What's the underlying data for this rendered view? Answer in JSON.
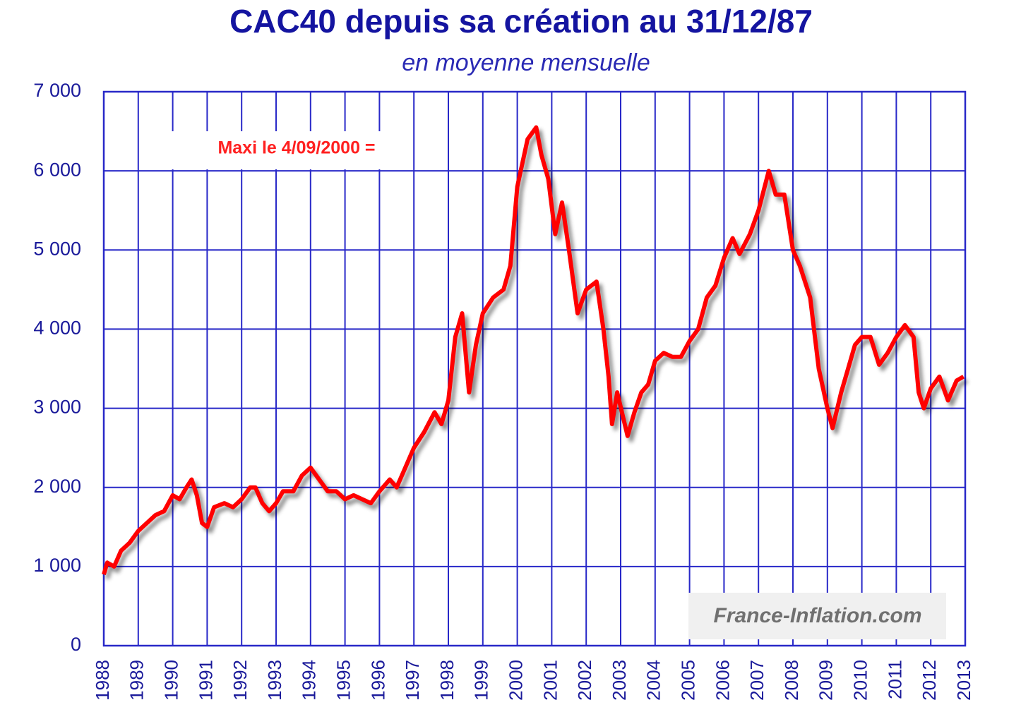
{
  "chart_data": {
    "type": "line",
    "title": "CAC40 depuis sa création au 31/12/87",
    "subtitle": "en moyenne mensuelle",
    "annotations": [
      "Maxi le 4/09/2000 =",
      "France-Inflation.com"
    ],
    "x": [
      1988.0,
      1988.1,
      1988.3,
      1988.5,
      1988.75,
      1989.0,
      1989.25,
      1989.5,
      1989.75,
      1990.0,
      1990.2,
      1990.4,
      1990.55,
      1990.7,
      1990.85,
      1991.0,
      1991.2,
      1991.5,
      1991.75,
      1992.0,
      1992.25,
      1992.4,
      1992.6,
      1992.8,
      1993.0,
      1993.2,
      1993.5,
      1993.75,
      1994.0,
      1994.25,
      1994.5,
      1994.75,
      1995.0,
      1995.25,
      1995.5,
      1995.75,
      1996.0,
      1996.3,
      1996.5,
      1996.75,
      1997.0,
      1997.3,
      1997.6,
      1997.8,
      1998.0,
      1998.2,
      1998.4,
      1998.6,
      1998.8,
      1999.0,
      1999.3,
      1999.6,
      1999.8,
      2000.0,
      2000.3,
      2000.55,
      2000.7,
      2000.9,
      2001.1,
      2001.3,
      2001.5,
      2001.75,
      2002.0,
      2002.3,
      2002.5,
      2002.65,
      2002.75,
      2002.9,
      2003.2,
      2003.4,
      2003.6,
      2003.8,
      2004.0,
      2004.25,
      2004.5,
      2004.75,
      2005.0,
      2005.25,
      2005.5,
      2005.75,
      2006.0,
      2006.25,
      2006.45,
      2006.75,
      2007.0,
      2007.3,
      2007.5,
      2007.75,
      2008.0,
      2008.2,
      2008.5,
      2008.75,
      2009.0,
      2009.15,
      2009.4,
      2009.6,
      2009.8,
      2010.0,
      2010.25,
      2010.5,
      2010.75,
      2011.0,
      2011.25,
      2011.5,
      2011.65,
      2011.8,
      2012.0,
      2012.25,
      2012.5,
      2012.75,
      2012.95
    ],
    "series": [
      {
        "name": "CAC40",
        "color": "#ff0000",
        "values": [
          900,
          1050,
          1000,
          1200,
          1300,
          1450,
          1550,
          1650,
          1700,
          1900,
          1850,
          2000,
          2100,
          1900,
          1550,
          1500,
          1750,
          1800,
          1750,
          1850,
          2000,
          2000,
          1800,
          1700,
          1800,
          1950,
          1950,
          2150,
          2250,
          2100,
          1950,
          1950,
          1850,
          1900,
          1850,
          1800,
          1950,
          2100,
          2000,
          2250,
          2500,
          2700,
          2950,
          2800,
          3100,
          3900,
          4200,
          3200,
          3800,
          4200,
          4400,
          4500,
          4800,
          5800,
          6400,
          6550,
          6200,
          5900,
          5200,
          5600,
          5000,
          4200,
          4500,
          4600,
          4000,
          3400,
          2800,
          3200,
          2650,
          2950,
          3200,
          3300,
          3600,
          3700,
          3650,
          3650,
          3850,
          4000,
          4400,
          4550,
          4900,
          5150,
          4950,
          5200,
          5500,
          6000,
          5700,
          5700,
          5000,
          4800,
          4400,
          3500,
          3000,
          2750,
          3200,
          3500,
          3800,
          3900,
          3900,
          3550,
          3700,
          3900,
          4050,
          3900,
          3200,
          3000,
          3250,
          3400,
          3100,
          3350,
          3400
        ]
      }
    ],
    "xlim": [
      1988,
      2013
    ],
    "xticks": [
      1988,
      1989,
      1990,
      1991,
      1992,
      1993,
      1994,
      1995,
      1996,
      1997,
      1998,
      1999,
      2000,
      2001,
      2002,
      2003,
      2004,
      2005,
      2006,
      2007,
      2008,
      2009,
      2010,
      2011,
      2012,
      2013
    ],
    "ylim": [
      0,
      7000
    ],
    "yticks": [
      {
        "value": 0,
        "label": "0"
      },
      {
        "value": 1000,
        "label": "1 000"
      },
      {
        "value": 2000,
        "label": "2 000"
      },
      {
        "value": 3000,
        "label": "3 000"
      },
      {
        "value": 4000,
        "label": "4 000"
      },
      {
        "value": 5000,
        "label": "5 000"
      },
      {
        "value": 6000,
        "label": "6 000"
      },
      {
        "value": 7000,
        "label": "7 000"
      }
    ],
    "grid": true,
    "grid_color": "#2828c8"
  }
}
